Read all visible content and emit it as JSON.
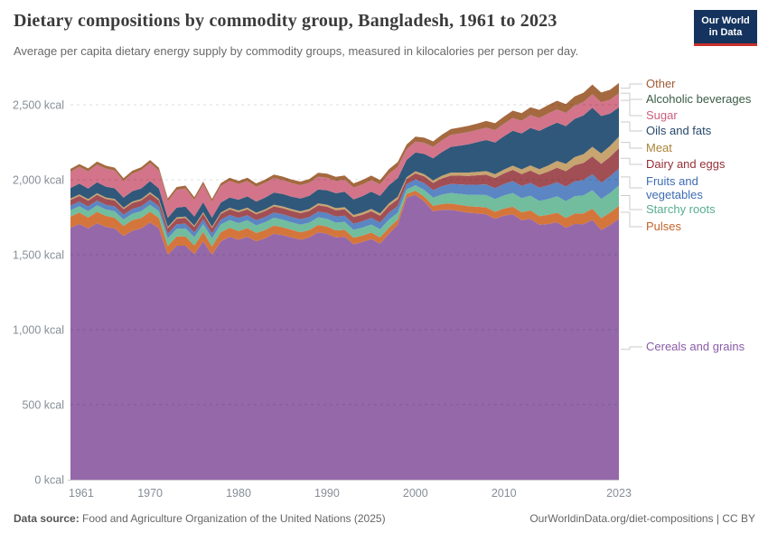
{
  "header": {
    "title": "Dietary compositions by commodity group, Bangladesh, 1961 to 2023",
    "subtitle": "Average per capita dietary energy supply by commodity groups, measured in kilocalories per person per day.",
    "logo": {
      "line1": "Our World",
      "line2": "in Data",
      "bg_color": "#14345f",
      "bar_color": "#c7302b"
    }
  },
  "footer": {
    "source_label": "Data source:",
    "source_text": " Food and Agriculture Organization of the United Nations (2025)",
    "credit": "OurWorldinData.org/diet-compositions | CC BY"
  },
  "chart_data": {
    "type": "area",
    "stacked": true,
    "title": "Dietary compositions by commodity group, Bangladesh, 1961 to 2023",
    "unit": "kcal per person per day",
    "xlabel": "",
    "ylabel": "kcal",
    "ylim": [
      0,
      2700
    ],
    "grid": "dashed-horizontal",
    "legend_position": "right",
    "x": [
      1961,
      1962,
      1963,
      1964,
      1965,
      1966,
      1967,
      1968,
      1969,
      1970,
      1971,
      1972,
      1973,
      1974,
      1975,
      1976,
      1977,
      1978,
      1979,
      1980,
      1981,
      1982,
      1983,
      1984,
      1985,
      1986,
      1987,
      1988,
      1989,
      1990,
      1991,
      1992,
      1993,
      1994,
      1995,
      1996,
      1997,
      1998,
      1999,
      2000,
      2001,
      2002,
      2003,
      2004,
      2005,
      2006,
      2007,
      2008,
      2009,
      2010,
      2011,
      2012,
      2013,
      2014,
      2015,
      2016,
      2017,
      2018,
      2019,
      2020,
      2021,
      2022,
      2023
    ],
    "x_ticks": [
      "1961",
      "1970",
      "1980",
      "1990",
      "2000",
      "2010",
      "2023"
    ],
    "y_ticks": [
      {
        "value": 0,
        "label": "0 kcal"
      },
      {
        "value": 500,
        "label": "500 kcal"
      },
      {
        "value": 1000,
        "label": "1,000 kcal"
      },
      {
        "value": 1500,
        "label": "1,500 kcal"
      },
      {
        "value": 2000,
        "label": "2,000 kcal"
      },
      {
        "value": 2500,
        "label": "2,500 kcal"
      }
    ],
    "series": [
      {
        "name": "Cereals and grains",
        "color": "#9568a9",
        "label_color": "#8a5ba8",
        "values": [
          1680,
          1705,
          1675,
          1710,
          1685,
          1675,
          1625,
          1660,
          1675,
          1715,
          1675,
          1500,
          1560,
          1560,
          1505,
          1590,
          1500,
          1590,
          1620,
          1600,
          1620,
          1590,
          1610,
          1640,
          1630,
          1615,
          1600,
          1615,
          1650,
          1640,
          1615,
          1620,
          1570,
          1585,
          1605,
          1575,
          1640,
          1700,
          1880,
          1900,
          1855,
          1790,
          1800,
          1800,
          1790,
          1780,
          1775,
          1770,
          1740,
          1760,
          1770,
          1730,
          1740,
          1700,
          1705,
          1717,
          1680,
          1705,
          1704,
          1732,
          1665,
          1698,
          1739
        ]
      },
      {
        "name": "Pulses",
        "color": "#d4763c",
        "label_color": "#c2662c",
        "values": [
          75,
          76,
          74,
          76,
          74,
          72,
          68,
          70,
          71,
          72,
          70,
          58,
          62,
          63,
          57,
          62,
          56,
          60,
          60,
          58,
          58,
          55,
          55,
          55,
          53,
          51,
          50,
          49,
          49,
          48,
          47,
          46,
          44,
          43,
          43,
          41,
          40,
          35,
          25,
          28,
          32,
          36,
          39,
          42,
          43,
          44,
          45,
          46,
          47,
          48,
          51,
          53,
          56,
          58,
          61,
          64,
          66,
          69,
          72,
          75,
          79,
          83,
          88
        ]
      },
      {
        "name": "Starchy roots",
        "color": "#71bd9e",
        "label_color": "#56ad8d",
        "values": [
          42,
          43,
          42,
          44,
          43,
          44,
          42,
          44,
          45,
          46,
          46,
          52,
          50,
          52,
          56,
          52,
          55,
          52,
          52,
          53,
          52,
          51,
          52,
          52,
          51,
          50,
          50,
          50,
          51,
          52,
          52,
          53,
          52,
          53,
          54,
          54,
          55,
          45,
          30,
          35,
          45,
          55,
          62,
          70,
          73,
          76,
          79,
          82,
          84,
          87,
          91,
          94,
          98,
          101,
          105,
          109,
          112,
          116,
          120,
          124,
          128,
          131,
          135
        ]
      },
      {
        "name": "Fruits and vegetables",
        "color": "#5b85c3",
        "label_color": "#3d6cb4",
        "values": [
          30,
          30,
          31,
          31,
          31,
          32,
          31,
          32,
          32,
          33,
          32,
          30,
          31,
          32,
          31,
          32,
          31,
          32,
          33,
          34,
          34,
          34,
          35,
          35,
          36,
          36,
          37,
          37,
          38,
          39,
          40,
          41,
          41,
          42,
          44,
          45,
          46,
          45,
          35,
          40,
          45,
          50,
          56,
          60,
          63,
          66,
          68,
          71,
          73,
          76,
          79,
          82,
          85,
          88,
          91,
          94,
          97,
          100,
          103,
          106,
          109,
          111,
          113
        ]
      },
      {
        "name": "Dairy and eggs",
        "color": "#a14f55",
        "label_color": "#952e38",
        "values": [
          38,
          38,
          39,
          39,
          39,
          39,
          38,
          39,
          39,
          40,
          39,
          36,
          37,
          38,
          36,
          38,
          36,
          38,
          38,
          39,
          39,
          39,
          40,
          40,
          40,
          40,
          41,
          41,
          42,
          42,
          43,
          43,
          44,
          44,
          45,
          46,
          46,
          45,
          35,
          40,
          45,
          48,
          52,
          56,
          58,
          60,
          63,
          65,
          68,
          71,
          75,
          79,
          83,
          87,
          92,
          97,
          102,
          107,
          113,
          119,
          125,
          130,
          136
        ]
      },
      {
        "name": "Meat",
        "color": "#c7a470",
        "label_color": "#ab8339",
        "values": [
          10,
          10,
          10,
          10,
          10,
          10,
          10,
          10,
          10,
          11,
          10,
          9,
          10,
          10,
          9,
          10,
          9,
          10,
          10,
          11,
          11,
          11,
          11,
          12,
          12,
          12,
          12,
          13,
          13,
          13,
          14,
          14,
          14,
          15,
          15,
          15,
          16,
          16,
          12,
          14,
          15,
          16,
          18,
          20,
          21,
          22,
          23,
          24,
          25,
          26,
          28,
          31,
          34,
          37,
          41,
          45,
          49,
          54,
          59,
          64,
          69,
          73,
          77
        ]
      },
      {
        "name": "Oils and fats",
        "color": "#30587a",
        "label_color": "#27486b",
        "values": [
          70,
          72,
          70,
          73,
          72,
          71,
          67,
          69,
          70,
          74,
          70,
          60,
          64,
          66,
          61,
          66,
          60,
          66,
          69,
          72,
          75,
          75,
          78,
          81,
          83,
          83,
          85,
          88,
          92,
          96,
          99,
          103,
          104,
          109,
          115,
          117,
          121,
          125,
          115,
          125,
          135,
          148,
          158,
          171,
          180,
          189,
          198,
          207,
          212,
          222,
          233,
          240,
          250,
          255,
          260,
          255,
          252,
          255,
          258,
          260,
          250,
          215,
          195
        ]
      },
      {
        "name": "Sugar",
        "color": "#d3748a",
        "label_color": "#cb5f7f",
        "values": [
          108,
          112,
          115,
          118,
          120,
          118,
          110,
          116,
          122,
          120,
          118,
          112,
          118,
          120,
          110,
          118,
          106,
          110,
          110,
          104,
          102,
          98,
          98,
          96,
          92,
          90,
          88,
          86,
          85,
          83,
          81,
          80,
          78,
          77,
          76,
          75,
          75,
          74,
          70,
          72,
          74,
          76,
          78,
          80,
          80,
          81,
          81,
          82,
          82,
          83,
          84,
          84,
          85,
          85,
          86,
          87,
          87,
          88,
          89,
          90,
          91,
          92,
          93
        ]
      },
      {
        "name": "Alcoholic beverages",
        "color": "#3b6245",
        "label_color": "#3a5c44",
        "values": [
          1,
          1,
          1,
          1,
          1,
          1,
          1,
          1,
          1,
          1,
          1,
          1,
          1,
          1,
          1,
          1,
          1,
          1,
          1,
          1,
          1,
          1,
          1,
          1,
          1,
          1,
          1,
          1,
          1,
          1,
          1,
          1,
          1,
          1,
          1,
          1,
          1,
          1,
          1,
          1,
          1,
          1,
          1,
          1,
          1,
          1,
          1,
          1,
          1,
          1,
          1,
          1,
          1,
          1,
          1,
          1,
          1,
          1,
          1,
          1,
          1,
          1,
          1
        ]
      },
      {
        "name": "Other",
        "color": "#a5693f",
        "label_color": "#9e5b35",
        "values": [
          18,
          18,
          19,
          19,
          19,
          19,
          18,
          19,
          19,
          20,
          19,
          18,
          19,
          19,
          18,
          19,
          18,
          19,
          20,
          21,
          21,
          22,
          22,
          23,
          23,
          24,
          24,
          25,
          26,
          27,
          27,
          28,
          28,
          29,
          30,
          30,
          31,
          32,
          32,
          33,
          34,
          36,
          37,
          38,
          40,
          41,
          42,
          44,
          45,
          47,
          49,
          50,
          52,
          54,
          56,
          58,
          59,
          61,
          62,
          64,
          65,
          66,
          68
        ]
      }
    ]
  }
}
